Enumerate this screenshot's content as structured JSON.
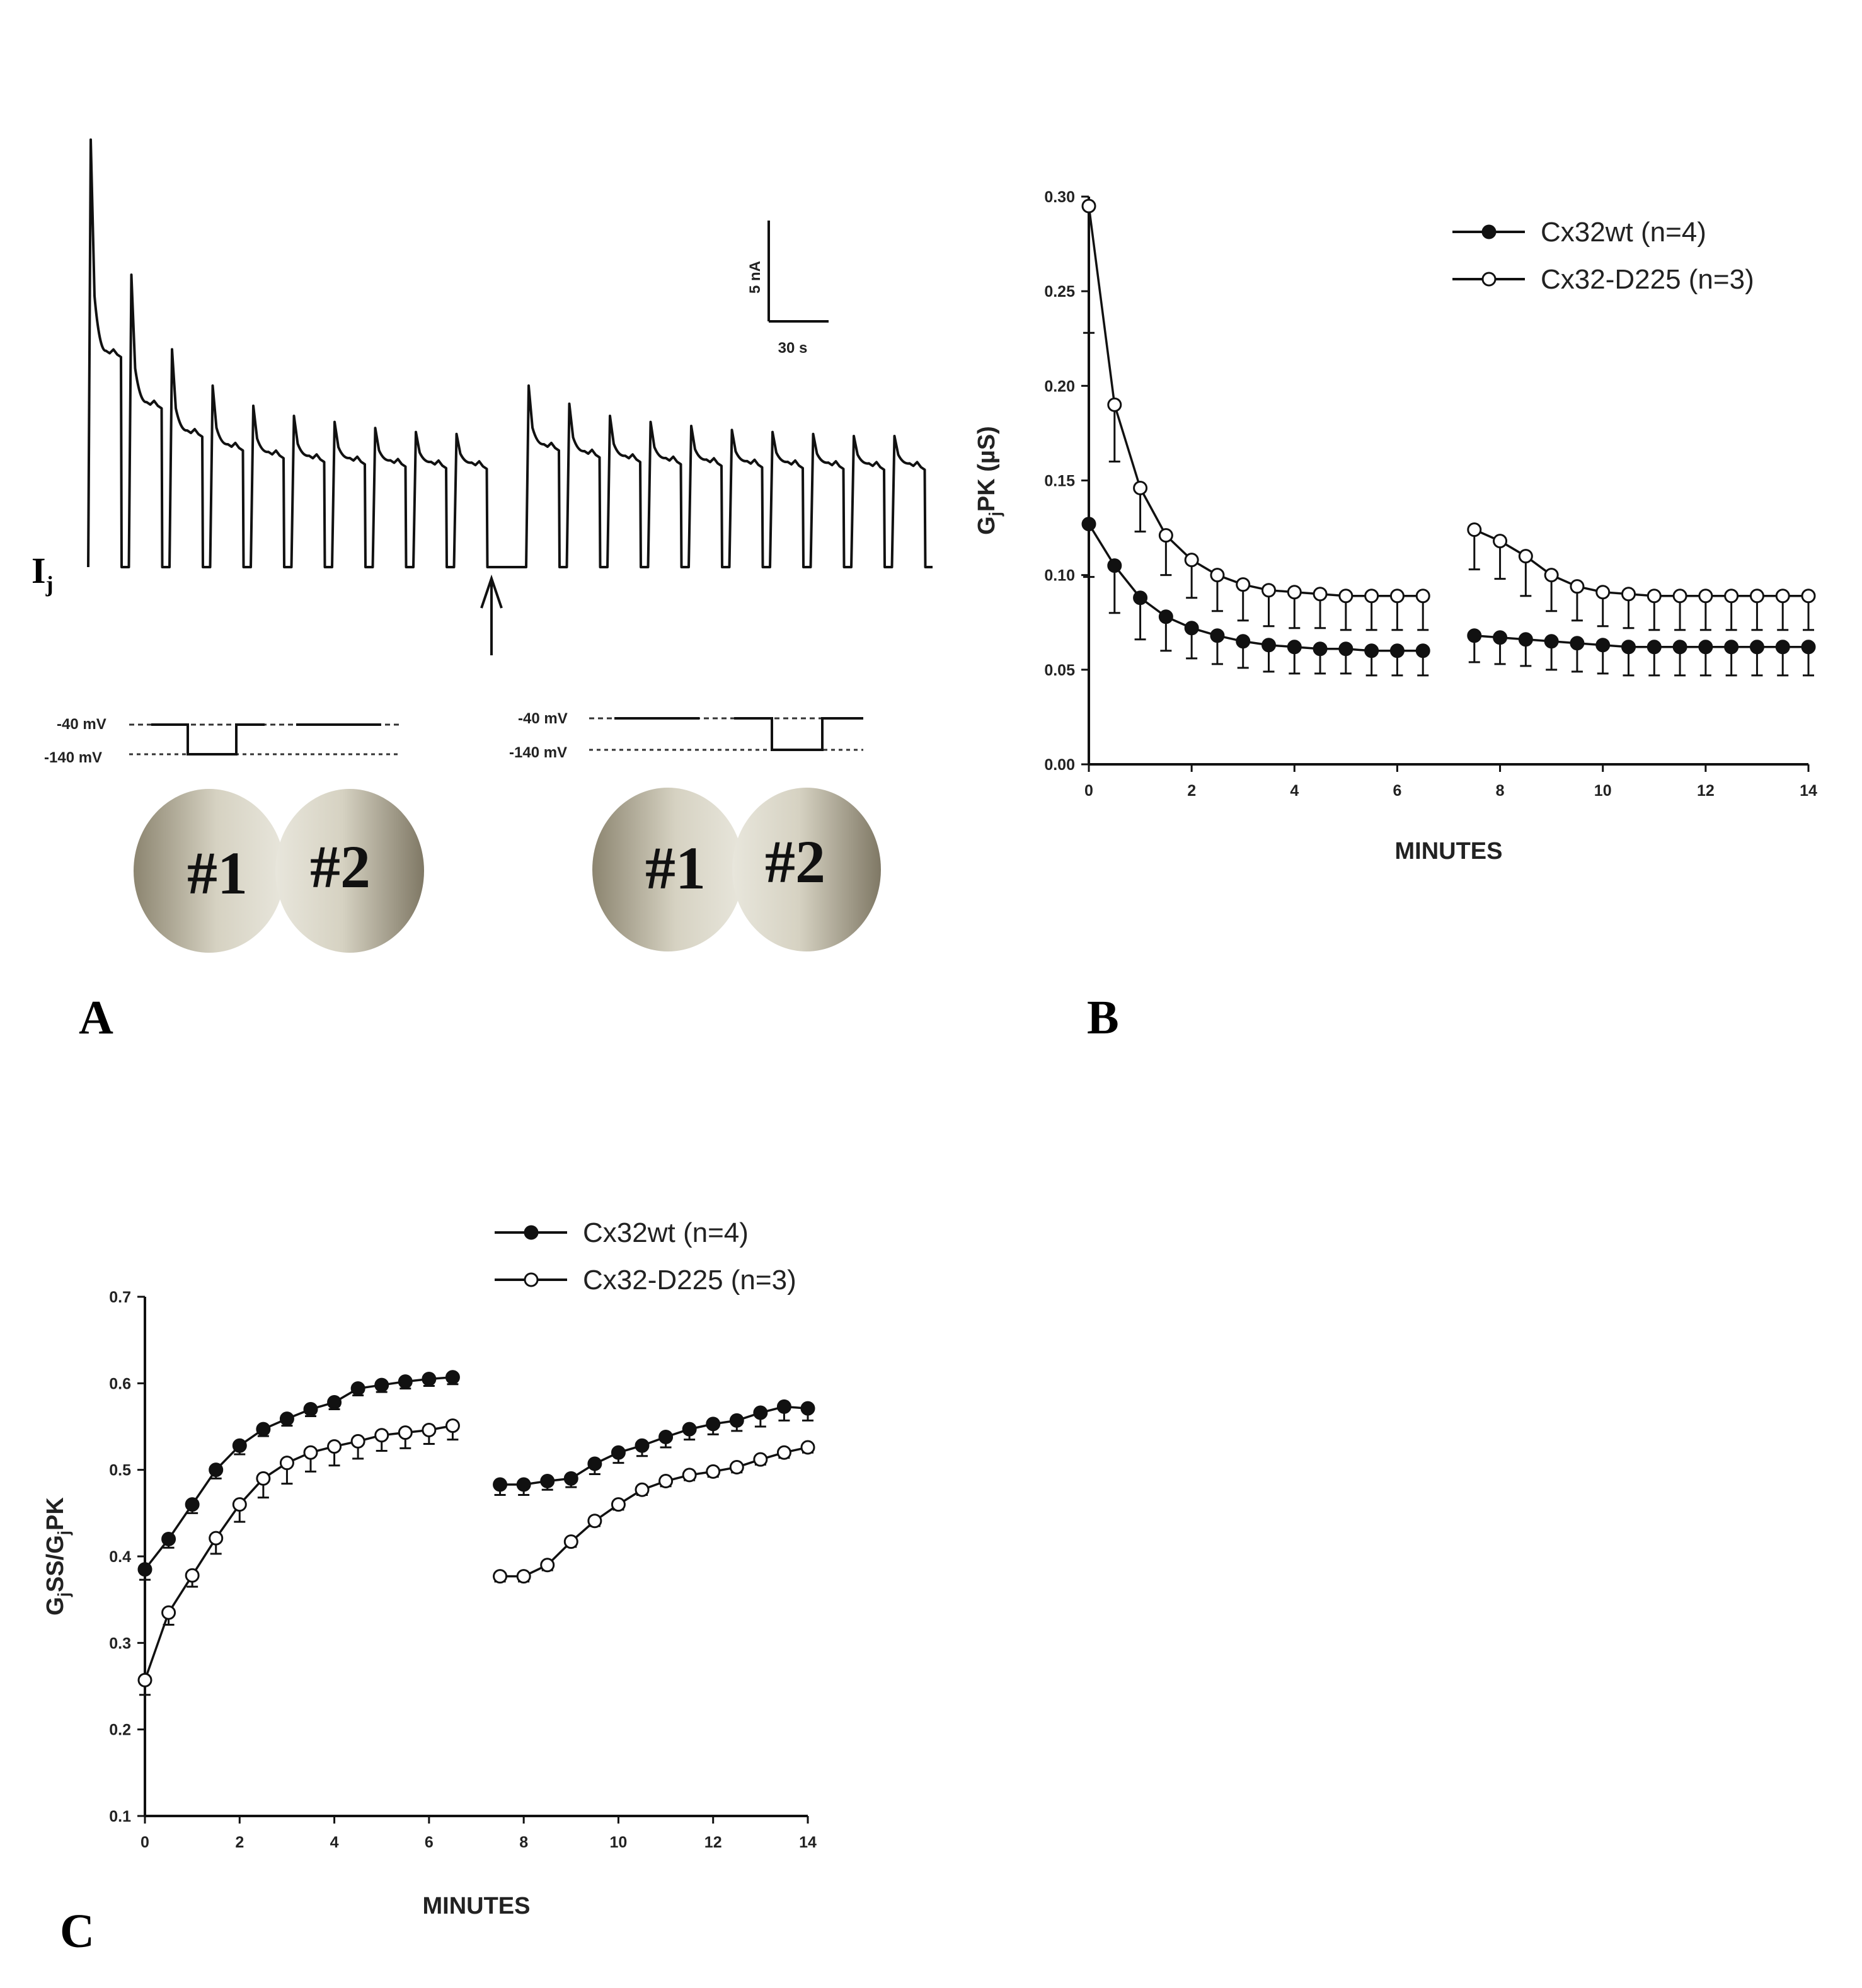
{
  "panels": {
    "a": "A",
    "b": "B",
    "c": "C"
  },
  "panel_a": {
    "current_label": "I",
    "current_sub": "j",
    "scale_y": "5 nA",
    "scale_x": "30 s",
    "protocol_left": {
      "hold": "-40 mV",
      "step": "-140 mV"
    },
    "protocol_right": {
      "hold": "-40 mV",
      "step": "-140 mV"
    },
    "cell1": "#1",
    "cell2": "#2",
    "trace": {
      "pulses_before": 10,
      "pulses_after": 10,
      "peak_heights_nA": [
        21.2,
        14.5,
        10.8,
        9.0,
        8.0,
        7.5,
        7.2,
        6.9,
        6.7,
        6.6,
        9.0,
        8.1,
        7.5,
        7.2,
        7.0,
        6.8,
        6.7,
        6.6,
        6.5,
        6.5
      ]
    }
  },
  "chart_data": [
    {
      "id": "B",
      "type": "line",
      "xlabel": "MINUTES",
      "ylabel_main": "G",
      "ylabel_sub": "j",
      "ylabel_rest": "PK (µS)",
      "xlim": [
        0,
        14
      ],
      "ylim": [
        0,
        0.3
      ],
      "xticks": [
        "0",
        "2",
        "4",
        "6",
        "8",
        "10",
        "12",
        "14"
      ],
      "yticks": [
        "0.00",
        "0.05",
        "0.10",
        "0.15",
        "0.20",
        "0.25",
        "0.30"
      ],
      "series": [
        {
          "name": "Cx32wt (n=4)",
          "marker": "filled",
          "segments": [
            {
              "x": [
                0,
                0.5,
                1,
                1.5,
                2,
                2.5,
                3,
                3.5,
                4,
                4.5,
                5,
                5.5,
                6,
                6.5
              ],
              "y": [
                0.127,
                0.105,
                0.088,
                0.078,
                0.072,
                0.068,
                0.065,
                0.063,
                0.062,
                0.061,
                0.061,
                0.06,
                0.06,
                0.06
              ],
              "err": [
                0.028,
                0.025,
                0.022,
                0.018,
                0.016,
                0.015,
                0.014,
                0.014,
                0.014,
                0.013,
                0.013,
                0.013,
                0.013,
                0.013
              ]
            },
            {
              "x": [
                7.5,
                8,
                8.5,
                9,
                9.5,
                10,
                10.5,
                11,
                11.5,
                12,
                12.5,
                13,
                13.5,
                14
              ],
              "y": [
                0.068,
                0.067,
                0.066,
                0.065,
                0.064,
                0.063,
                0.062,
                0.062,
                0.062,
                0.062,
                0.062,
                0.062,
                0.062,
                0.062
              ],
              "err": [
                0.014,
                0.014,
                0.014,
                0.015,
                0.015,
                0.015,
                0.015,
                0.015,
                0.015,
                0.015,
                0.015,
                0.015,
                0.015,
                0.015
              ]
            }
          ]
        },
        {
          "name": "Cx32-D225 (n=3)",
          "marker": "open",
          "segments": [
            {
              "x": [
                0,
                0.5,
                1,
                1.5,
                2,
                2.5,
                3,
                3.5,
                4,
                4.5,
                5,
                5.5,
                6,
                6.5
              ],
              "y": [
                0.295,
                0.19,
                0.146,
                0.121,
                0.108,
                0.1,
                0.095,
                0.092,
                0.091,
                0.09,
                0.089,
                0.089,
                0.089,
                0.089
              ],
              "err": [
                0.067,
                0.03,
                0.023,
                0.021,
                0.02,
                0.019,
                0.019,
                0.019,
                0.019,
                0.018,
                0.018,
                0.018,
                0.018,
                0.018
              ]
            },
            {
              "x": [
                7.5,
                8,
                8.5,
                9,
                9.5,
                10,
                10.5,
                11,
                11.5,
                12,
                12.5,
                13,
                13.5,
                14
              ],
              "y": [
                0.124,
                0.118,
                0.11,
                0.1,
                0.094,
                0.091,
                0.09,
                0.089,
                0.089,
                0.089,
                0.089,
                0.089,
                0.089,
                0.089
              ],
              "err": [
                0.021,
                0.02,
                0.021,
                0.019,
                0.018,
                0.018,
                0.018,
                0.018,
                0.018,
                0.018,
                0.018,
                0.018,
                0.018,
                0.018
              ]
            }
          ]
        }
      ],
      "legend": "top-right"
    },
    {
      "id": "C",
      "type": "line",
      "xlabel": "MINUTES",
      "ylabel_main": "G",
      "ylabel_sub": "j",
      "ylabel_rest": "SS/G",
      "ylabel_sub2": "j",
      "ylabel_end": "PK",
      "xlim": [
        0,
        14
      ],
      "ylim": [
        0.1,
        0.7
      ],
      "xticks": [
        "0",
        "2",
        "4",
        "6",
        "8",
        "10",
        "12",
        "14"
      ],
      "yticks": [
        "0.1",
        "0.2",
        "0.3",
        "0.4",
        "0.5",
        "0.6",
        "0.7"
      ],
      "series": [
        {
          "name": "Cx32wt (n=4)",
          "marker": "filled",
          "segments": [
            {
              "x": [
                0,
                0.5,
                1,
                1.5,
                2,
                2.5,
                3,
                3.5,
                4,
                4.5,
                5,
                5.5,
                6,
                6.5
              ],
              "y": [
                0.385,
                0.42,
                0.46,
                0.5,
                0.528,
                0.547,
                0.559,
                0.57,
                0.578,
                0.594,
                0.598,
                0.602,
                0.605,
                0.607
              ],
              "err": [
                0.012,
                0.01,
                0.01,
                0.01,
                0.01,
                0.008,
                0.008,
                0.008,
                0.008,
                0.008,
                0.008,
                0.008,
                0.008,
                0.008
              ]
            },
            {
              "x": [
                7.5,
                8,
                8.5,
                9,
                9.5,
                10,
                10.5,
                11,
                11.5,
                12,
                12.5,
                13,
                13.5,
                14
              ],
              "y": [
                0.483,
                0.483,
                0.487,
                0.49,
                0.507,
                0.52,
                0.528,
                0.538,
                0.547,
                0.553,
                0.557,
                0.566,
                0.573,
                0.571
              ],
              "err": [
                0.012,
                0.012,
                0.01,
                0.01,
                0.012,
                0.012,
                0.012,
                0.012,
                0.012,
                0.012,
                0.012,
                0.016,
                0.016,
                0.014
              ]
            }
          ]
        },
        {
          "name": "Cx32-D225 (n=3)",
          "marker": "open",
          "segments": [
            {
              "x": [
                0,
                0.5,
                1,
                1.5,
                2,
                2.5,
                3,
                3.5,
                4,
                4.5,
                5,
                5.5,
                6,
                6.5
              ],
              "y": [
                0.257,
                0.335,
                0.378,
                0.421,
                0.46,
                0.49,
                0.508,
                0.52,
                0.527,
                0.533,
                0.54,
                0.543,
                0.546,
                0.551
              ],
              "err": [
                0.017,
                0.014,
                0.013,
                0.018,
                0.02,
                0.022,
                0.024,
                0.022,
                0.022,
                0.02,
                0.018,
                0.018,
                0.016,
                0.016
              ]
            },
            {
              "x": [
                7.5,
                8,
                8.5,
                9,
                9.5,
                10,
                10.5,
                11,
                11.5,
                12,
                12.5,
                13,
                13.5,
                14
              ],
              "y": [
                0.377,
                0.377,
                0.39,
                0.417,
                0.441,
                0.46,
                0.477,
                0.487,
                0.494,
                0.498,
                0.503,
                0.512,
                0.52,
                0.526
              ],
              "err": [
                0.006,
                0.006,
                0.006,
                0.006,
                0.006,
                0.006,
                0.006,
                0.006,
                0.006,
                0.006,
                0.006,
                0.006,
                0.006,
                0.006
              ]
            }
          ]
        }
      ],
      "legend": "top"
    }
  ]
}
